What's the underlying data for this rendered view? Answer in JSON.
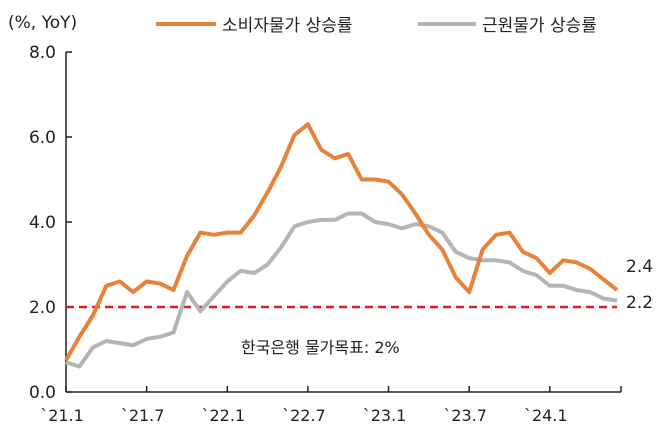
{
  "chart_data": {
    "type": "line",
    "ylabel": "(%, YoY)",
    "ylim": [
      0,
      8
    ],
    "yticks": [
      "0.0",
      "2.0",
      "4.0",
      "6.0",
      "8.0"
    ],
    "yticks_values": [
      0,
      2,
      4,
      6,
      8
    ],
    "x_start": "2021.1",
    "x_end": "2024.6",
    "xtick_labels": [
      "`21.1",
      "`21.7",
      "`22.1",
      "`22.7",
      "`23.1",
      "`23.7",
      "`24.1"
    ],
    "xtick_index": [
      0,
      6,
      12,
      18,
      24,
      30,
      36
    ],
    "series": [
      {
        "name": "소비자물가 상승률",
        "color": "#E8823A",
        "end_label": "2.4",
        "values": [
          0.75,
          1.3,
          1.8,
          2.5,
          2.6,
          2.35,
          2.6,
          2.55,
          2.4,
          3.2,
          3.75,
          3.7,
          3.75,
          3.75,
          4.15,
          4.7,
          5.3,
          6.05,
          6.3,
          5.7,
          5.5,
          5.6,
          5.0,
          5.0,
          4.95,
          4.65,
          4.2,
          3.7,
          3.35,
          2.7,
          2.35,
          3.35,
          3.7,
          3.75,
          3.3,
          3.15,
          2.8,
          3.1,
          3.05,
          2.9,
          2.65,
          2.4
        ]
      },
      {
        "name": "근원물가 상승률",
        "color": "#B5B5B5",
        "end_label": "2.2",
        "values": [
          0.7,
          0.6,
          1.05,
          1.2,
          1.15,
          1.1,
          1.25,
          1.3,
          1.4,
          2.35,
          1.9,
          2.25,
          2.6,
          2.85,
          2.8,
          3.0,
          3.4,
          3.9,
          4.0,
          4.05,
          4.05,
          4.2,
          4.2,
          4.0,
          3.95,
          3.85,
          3.95,
          3.9,
          3.75,
          3.3,
          3.15,
          3.1,
          3.1,
          3.05,
          2.85,
          2.75,
          2.5,
          2.5,
          2.4,
          2.35,
          2.2,
          2.15
        ]
      }
    ],
    "reference_line": {
      "value": 2,
      "color": "#E0201F",
      "label": "한국은행 물가목표: 2%"
    },
    "legend_position": "top",
    "grid": false
  }
}
